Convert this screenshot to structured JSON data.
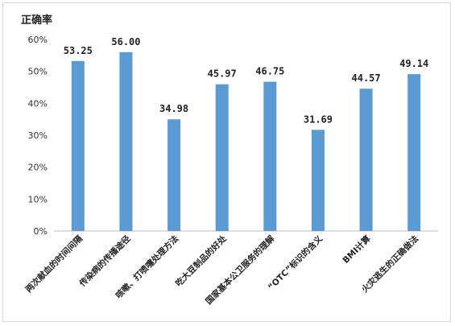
{
  "chart_data": {
    "type": "bar",
    "ylabel": "正确率",
    "categories": [
      "两次献血的时间间隔",
      "传染病的传播途径",
      "咳嗽、打喷嚏处理方法",
      "吃大豆制品的好处",
      "国家基本公卫服务的理解",
      "“OTC”标识的含义",
      "BMI计算",
      "火灾逃生的正确做法"
    ],
    "values": [
      53.25,
      56.0,
      34.98,
      45.97,
      46.75,
      31.69,
      44.57,
      49.14
    ],
    "value_labels": [
      "53.25",
      "56.00",
      "34.98",
      "45.97",
      "46.75",
      "31.69",
      "44.57",
      "49.14"
    ],
    "ylim": [
      0,
      60
    ],
    "yticks": [
      "0%",
      "10%",
      "20%",
      "30%",
      "40%",
      "50%",
      "60%"
    ],
    "grid": false,
    "legend": "none",
    "bar_color": "#5b9bd5"
  }
}
